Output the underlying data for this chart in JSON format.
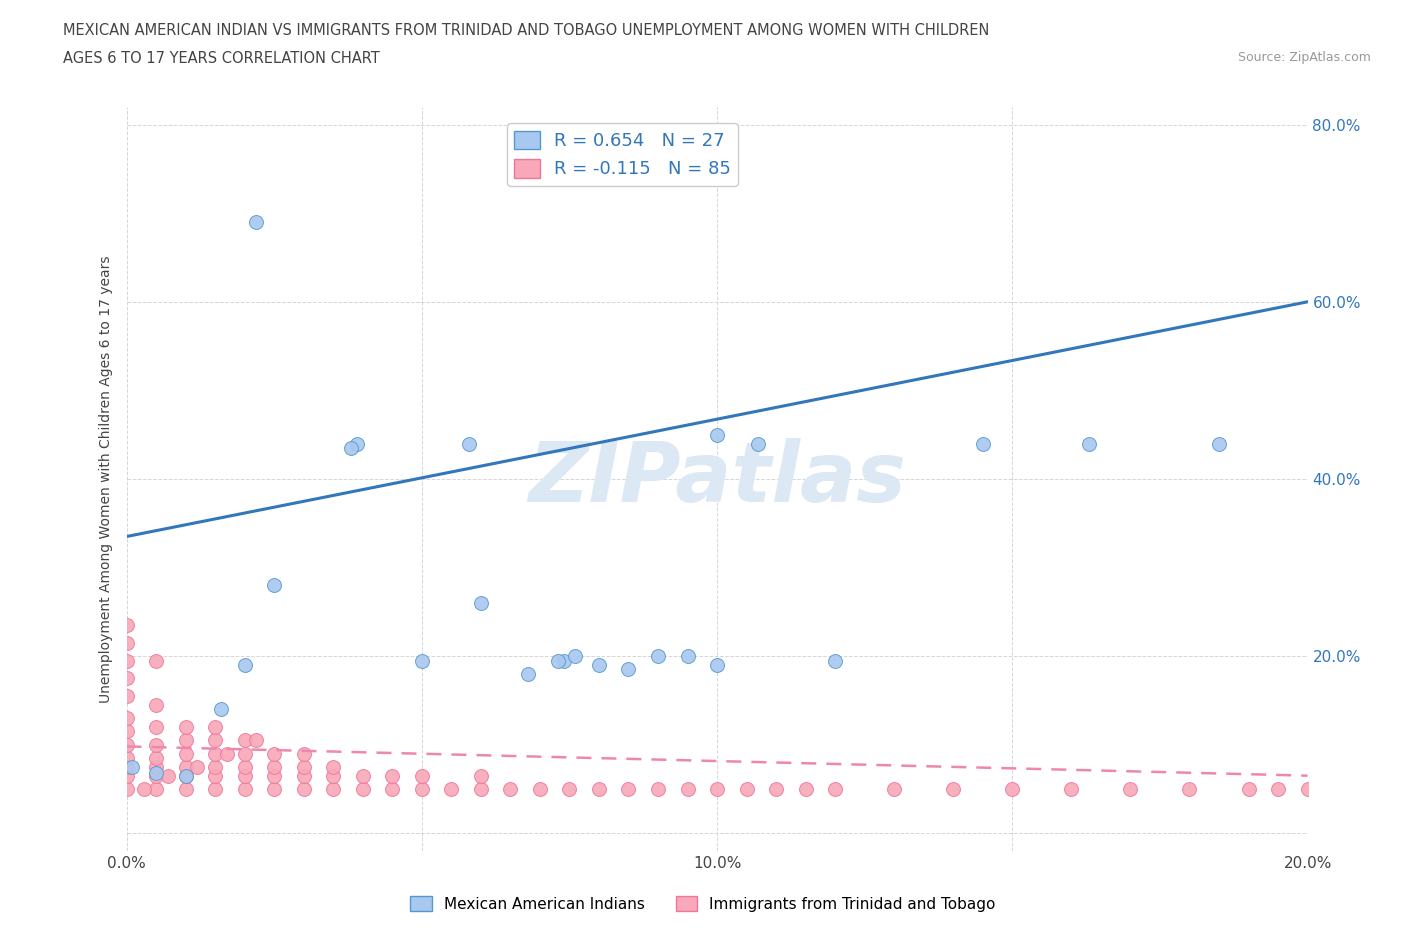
{
  "title_line1": "MEXICAN AMERICAN INDIAN VS IMMIGRANTS FROM TRINIDAD AND TOBAGO UNEMPLOYMENT AMONG WOMEN WITH CHILDREN",
  "title_line2": "AGES 6 TO 17 YEARS CORRELATION CHART",
  "source": "Source: ZipAtlas.com",
  "ylabel": "Unemployment Among Women with Children Ages 6 to 17 years",
  "xlim": [
    0.0,
    0.2
  ],
  "ylim": [
    -0.02,
    0.82
  ],
  "x_ticks": [
    0.0,
    0.05,
    0.1,
    0.15,
    0.2
  ],
  "x_tick_labels": [
    "0.0%",
    "",
    "10.0%",
    "",
    "20.0%"
  ],
  "y_ticks": [
    0.0,
    0.2,
    0.4,
    0.6,
    0.8
  ],
  "right_y_labels": [
    "",
    "20.0%",
    "40.0%",
    "60.0%",
    "80.0%"
  ],
  "blue_color": "#a8c8f0",
  "pink_color": "#f8a8b8",
  "blue_edge_color": "#5599cc",
  "pink_edge_color": "#ee7799",
  "blue_line_color": "#3377bb",
  "pink_line_color": "#ee88aa",
  "watermark_color": "#dde8f5",
  "legend_label_blue": "Mexican American Indians",
  "legend_label_pink": "Immigrants from Trinidad and Tobago",
  "blue_line_x0": 0.0,
  "blue_line_y0": 0.335,
  "blue_line_x1": 0.2,
  "blue_line_y1": 0.6,
  "pink_line_x0": 0.0,
  "pink_line_y0": 0.098,
  "pink_line_x1": 0.2,
  "pink_line_y1": 0.065,
  "blue_points_x": [
    0.022,
    0.039,
    0.038,
    0.058,
    0.074,
    0.085,
    0.076,
    0.05,
    0.095,
    0.1,
    0.107,
    0.12,
    0.145,
    0.163,
    0.185,
    0.001,
    0.005,
    0.01,
    0.016,
    0.02,
    0.025,
    0.06,
    0.068,
    0.073,
    0.08,
    0.09,
    0.1
  ],
  "blue_points_y": [
    0.69,
    0.44,
    0.435,
    0.44,
    0.195,
    0.185,
    0.2,
    0.195,
    0.2,
    0.45,
    0.44,
    0.195,
    0.44,
    0.44,
    0.44,
    0.075,
    0.068,
    0.065,
    0.14,
    0.19,
    0.28,
    0.26,
    0.18,
    0.195,
    0.19,
    0.2,
    0.19
  ],
  "pink_points_x": [
    0.0,
    0.0,
    0.0,
    0.0,
    0.0,
    0.0,
    0.0,
    0.0,
    0.0,
    0.0,
    0.0,
    0.0,
    0.005,
    0.005,
    0.005,
    0.005,
    0.005,
    0.005,
    0.005,
    0.005,
    0.01,
    0.01,
    0.01,
    0.01,
    0.01,
    0.01,
    0.015,
    0.015,
    0.015,
    0.015,
    0.015,
    0.015,
    0.02,
    0.02,
    0.02,
    0.02,
    0.02,
    0.025,
    0.025,
    0.025,
    0.025,
    0.03,
    0.03,
    0.03,
    0.03,
    0.035,
    0.035,
    0.035,
    0.04,
    0.04,
    0.045,
    0.045,
    0.05,
    0.05,
    0.055,
    0.06,
    0.06,
    0.065,
    0.07,
    0.075,
    0.08,
    0.085,
    0.09,
    0.095,
    0.1,
    0.105,
    0.11,
    0.115,
    0.12,
    0.13,
    0.14,
    0.15,
    0.16,
    0.17,
    0.18,
    0.19,
    0.195,
    0.2,
    0.003,
    0.007,
    0.012,
    0.017,
    0.022
  ],
  "pink_points_y": [
    0.05,
    0.065,
    0.075,
    0.085,
    0.1,
    0.115,
    0.13,
    0.155,
    0.175,
    0.195,
    0.215,
    0.235,
    0.05,
    0.065,
    0.075,
    0.085,
    0.1,
    0.12,
    0.145,
    0.195,
    0.05,
    0.065,
    0.075,
    0.09,
    0.105,
    0.12,
    0.05,
    0.065,
    0.075,
    0.09,
    0.105,
    0.12,
    0.05,
    0.065,
    0.075,
    0.09,
    0.105,
    0.05,
    0.065,
    0.075,
    0.09,
    0.05,
    0.065,
    0.075,
    0.09,
    0.05,
    0.065,
    0.075,
    0.05,
    0.065,
    0.05,
    0.065,
    0.05,
    0.065,
    0.05,
    0.05,
    0.065,
    0.05,
    0.05,
    0.05,
    0.05,
    0.05,
    0.05,
    0.05,
    0.05,
    0.05,
    0.05,
    0.05,
    0.05,
    0.05,
    0.05,
    0.05,
    0.05,
    0.05,
    0.05,
    0.05,
    0.05,
    0.05,
    0.05,
    0.065,
    0.075,
    0.09,
    0.105
  ],
  "grid_color": "#cccccc",
  "background_color": "#ffffff",
  "text_color": "#444444",
  "right_label_color": "#3377bb"
}
